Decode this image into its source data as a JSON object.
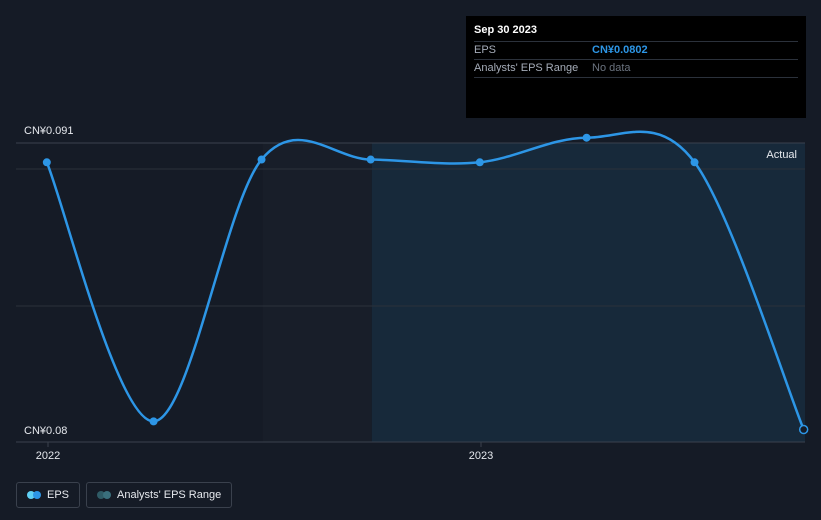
{
  "tooltip": {
    "date": "Sep 30 2023",
    "eps_label": "EPS",
    "eps_value": "CN¥0.0802",
    "range_label": "Analysts' EPS Range",
    "range_value": "No data"
  },
  "legend": {
    "eps_label": "EPS",
    "range_label": "Analysts' EPS Range"
  },
  "colors": {
    "background": "#151b26",
    "eps_line": "#2d96e6",
    "actual_region": "#17293a",
    "grid": "#2b313b"
  },
  "chart_data": {
    "type": "line",
    "title": "",
    "xlabel": "",
    "ylabel": "",
    "y_top_label": "CN¥0.091",
    "y_bottom_label": "CN¥0.08",
    "ylim": [
      0.08,
      0.091
    ],
    "x_ticks": [
      {
        "label": "2022",
        "date": "2022-01-01"
      },
      {
        "label": "2023",
        "date": "2023-01-01"
      }
    ],
    "region_label": "Actual",
    "region_start": "2022-10-01",
    "highlight_start": "2022-07-01",
    "highlight_end": "2022-10-01",
    "series": [
      {
        "name": "EPS",
        "points": [
          {
            "date": "2021-12-31",
            "value": 0.09
          },
          {
            "date": "2022-03-31",
            "value": 0.0805
          },
          {
            "date": "2022-06-30",
            "value": 0.0901
          },
          {
            "date": "2022-09-30",
            "value": 0.0901
          },
          {
            "date": "2022-12-31",
            "value": 0.09
          },
          {
            "date": "2023-03-31",
            "value": 0.0909
          },
          {
            "date": "2023-06-30",
            "value": 0.09
          },
          {
            "date": "2023-09-30",
            "value": 0.0802
          }
        ]
      }
    ]
  }
}
